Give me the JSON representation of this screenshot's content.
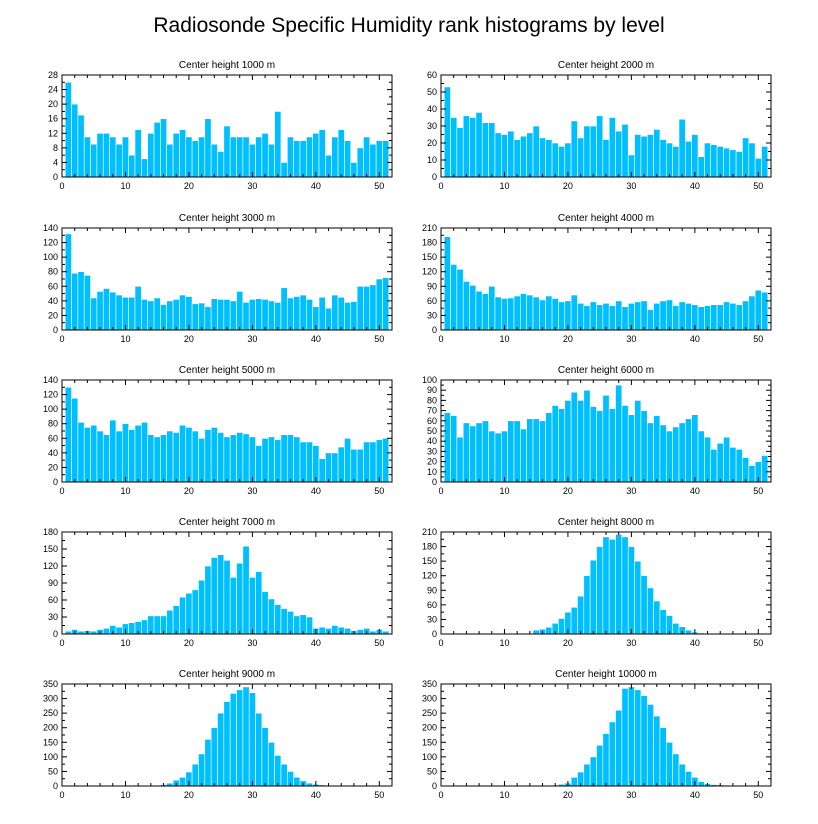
{
  "title": "Radiosonde Specific Humidity rank histograms by level",
  "colors": {
    "bar": "#00bfff",
    "axis": "#000000",
    "background": "#ffffff"
  },
  "chart_data": [
    {
      "type": "bar",
      "title": "Center height 1000 m",
      "x": [
        1,
        2,
        3,
        4,
        5,
        6,
        7,
        8,
        9,
        10,
        11,
        12,
        13,
        14,
        15,
        16,
        17,
        18,
        19,
        20,
        21,
        22,
        23,
        24,
        25,
        26,
        27,
        28,
        29,
        30,
        31,
        32,
        33,
        34,
        35,
        36,
        37,
        38,
        39,
        40,
        41,
        42,
        43,
        44,
        45,
        46,
        47,
        48,
        49,
        50,
        51
      ],
      "values": [
        26,
        20,
        17,
        11,
        9,
        12,
        12,
        11,
        9,
        11,
        6,
        13,
        5,
        12,
        15,
        16,
        9,
        12,
        13,
        11,
        10,
        11,
        16,
        9,
        7,
        14,
        11,
        11,
        11,
        9,
        11,
        12,
        9,
        18,
        4,
        11,
        10,
        10,
        11,
        12,
        13,
        6,
        11,
        13,
        10,
        4,
        8,
        11,
        9,
        10,
        10
      ],
      "xlim": [
        0,
        52
      ],
      "xticks": [
        0,
        10,
        20,
        30,
        40,
        50
      ],
      "ylim": [
        0,
        28
      ],
      "yticks": [
        0,
        4,
        8,
        12,
        16,
        20,
        24,
        28
      ]
    },
    {
      "type": "bar",
      "title": "Center height 2000 m",
      "x": [
        1,
        2,
        3,
        4,
        5,
        6,
        7,
        8,
        9,
        10,
        11,
        12,
        13,
        14,
        15,
        16,
        17,
        18,
        19,
        20,
        21,
        22,
        23,
        24,
        25,
        26,
        27,
        28,
        29,
        30,
        31,
        32,
        33,
        34,
        35,
        36,
        37,
        38,
        39,
        40,
        41,
        42,
        43,
        44,
        45,
        46,
        47,
        48,
        49,
        50,
        51
      ],
      "values": [
        53,
        35,
        29,
        36,
        35,
        38,
        32,
        32,
        26,
        25,
        27,
        22,
        24,
        26,
        30,
        23,
        22,
        20,
        18,
        20,
        33,
        23,
        30,
        30,
        36,
        22,
        35,
        27,
        31,
        13,
        25,
        24,
        25,
        28,
        22,
        20,
        18,
        34,
        21,
        25,
        12,
        20,
        19,
        18,
        17,
        16,
        15,
        23,
        20,
        11,
        18
      ],
      "xlim": [
        0,
        52
      ],
      "xticks": [
        0,
        10,
        20,
        30,
        40,
        50
      ],
      "ylim": [
        0,
        60
      ],
      "yticks": [
        0,
        10,
        20,
        30,
        40,
        50,
        60
      ]
    },
    {
      "type": "bar",
      "title": "Center height 3000 m",
      "x": [
        1,
        2,
        3,
        4,
        5,
        6,
        7,
        8,
        9,
        10,
        11,
        12,
        13,
        14,
        15,
        16,
        17,
        18,
        19,
        20,
        21,
        22,
        23,
        24,
        25,
        26,
        27,
        28,
        29,
        30,
        31,
        32,
        33,
        34,
        35,
        36,
        37,
        38,
        39,
        40,
        41,
        42,
        43,
        44,
        45,
        46,
        47,
        48,
        49,
        50,
        51
      ],
      "values": [
        132,
        78,
        80,
        75,
        44,
        53,
        57,
        52,
        48,
        45,
        45,
        60,
        42,
        40,
        44,
        35,
        40,
        42,
        48,
        46,
        36,
        37,
        32,
        43,
        42,
        42,
        40,
        53,
        38,
        42,
        43,
        42,
        40,
        38,
        58,
        44,
        46,
        48,
        42,
        32,
        45,
        30,
        48,
        45,
        38,
        39,
        60,
        60,
        62,
        70,
        72
      ],
      "xlim": [
        0,
        52
      ],
      "xticks": [
        0,
        10,
        20,
        30,
        40,
        50
      ],
      "ylim": [
        0,
        140
      ],
      "yticks": [
        0,
        20,
        40,
        60,
        80,
        100,
        120,
        140
      ]
    },
    {
      "type": "bar",
      "title": "Center height 4000 m",
      "x": [
        1,
        2,
        3,
        4,
        5,
        6,
        7,
        8,
        9,
        10,
        11,
        12,
        13,
        14,
        15,
        16,
        17,
        18,
        19,
        20,
        21,
        22,
        23,
        24,
        25,
        26,
        27,
        28,
        29,
        30,
        31,
        32,
        33,
        34,
        35,
        36,
        37,
        38,
        39,
        40,
        41,
        42,
        43,
        44,
        45,
        46,
        47,
        48,
        49,
        50,
        51
      ],
      "values": [
        192,
        135,
        125,
        100,
        92,
        80,
        75,
        90,
        68,
        65,
        66,
        70,
        75,
        72,
        68,
        62,
        70,
        65,
        58,
        60,
        72,
        55,
        50,
        58,
        52,
        55,
        50,
        60,
        48,
        55,
        58,
        60,
        42,
        55,
        60,
        62,
        50,
        58,
        55,
        52,
        48,
        50,
        52,
        52,
        58,
        55,
        52,
        60,
        70,
        82,
        78
      ],
      "xlim": [
        0,
        52
      ],
      "xticks": [
        0,
        10,
        20,
        30,
        40,
        50
      ],
      "ylim": [
        0,
        210
      ],
      "yticks": [
        0,
        30,
        60,
        90,
        120,
        150,
        180,
        210
      ]
    },
    {
      "type": "bar",
      "title": "Center height 5000 m",
      "x": [
        1,
        2,
        3,
        4,
        5,
        6,
        7,
        8,
        9,
        10,
        11,
        12,
        13,
        14,
        15,
        16,
        17,
        18,
        19,
        20,
        21,
        22,
        23,
        24,
        25,
        26,
        27,
        28,
        29,
        30,
        31,
        32,
        33,
        34,
        35,
        36,
        37,
        38,
        39,
        40,
        41,
        42,
        43,
        44,
        45,
        46,
        47,
        48,
        49,
        50,
        51
      ],
      "values": [
        130,
        115,
        82,
        75,
        78,
        70,
        65,
        85,
        70,
        80,
        72,
        78,
        82,
        65,
        62,
        65,
        70,
        68,
        78,
        75,
        70,
        60,
        72,
        75,
        68,
        62,
        65,
        68,
        66,
        62,
        50,
        60,
        62,
        58,
        65,
        65,
        62,
        55,
        55,
        50,
        32,
        40,
        40,
        48,
        60,
        45,
        45,
        55,
        55,
        58,
        60
      ],
      "xlim": [
        0,
        52
      ],
      "xticks": [
        0,
        10,
        20,
        30,
        40,
        50
      ],
      "ylim": [
        0,
        140
      ],
      "yticks": [
        0,
        20,
        40,
        60,
        80,
        100,
        120,
        140
      ]
    },
    {
      "type": "bar",
      "title": "Center height 6000 m",
      "x": [
        1,
        2,
        3,
        4,
        5,
        6,
        7,
        8,
        9,
        10,
        11,
        12,
        13,
        14,
        15,
        16,
        17,
        18,
        19,
        20,
        21,
        22,
        23,
        24,
        25,
        26,
        27,
        28,
        29,
        30,
        31,
        32,
        33,
        34,
        35,
        36,
        37,
        38,
        39,
        40,
        41,
        42,
        43,
        44,
        45,
        46,
        47,
        48,
        49,
        50,
        51
      ],
      "values": [
        68,
        65,
        44,
        58,
        55,
        58,
        60,
        50,
        48,
        50,
        60,
        60,
        52,
        62,
        62,
        60,
        68,
        75,
        72,
        80,
        88,
        80,
        90,
        74,
        70,
        85,
        72,
        95,
        75,
        66,
        80,
        70,
        58,
        65,
        56,
        50,
        54,
        58,
        62,
        66,
        50,
        44,
        32,
        38,
        44,
        34,
        32,
        24,
        16,
        20,
        26
      ],
      "xlim": [
        0,
        52
      ],
      "xticks": [
        0,
        10,
        20,
        30,
        40,
        50
      ],
      "ylim": [
        0,
        100
      ],
      "yticks": [
        0,
        10,
        20,
        30,
        40,
        50,
        60,
        70,
        80,
        90,
        100
      ]
    },
    {
      "type": "bar",
      "title": "Center height 7000 m",
      "x": [
        1,
        2,
        3,
        4,
        5,
        6,
        7,
        8,
        9,
        10,
        11,
        12,
        13,
        14,
        15,
        16,
        17,
        18,
        19,
        20,
        21,
        22,
        23,
        24,
        25,
        26,
        27,
        28,
        29,
        30,
        31,
        32,
        33,
        34,
        35,
        36,
        37,
        38,
        39,
        40,
        41,
        42,
        43,
        44,
        45,
        46,
        47,
        48,
        49,
        50,
        51
      ],
      "values": [
        5,
        8,
        5,
        6,
        5,
        8,
        10,
        15,
        12,
        18,
        20,
        22,
        25,
        32,
        32,
        32,
        42,
        50,
        65,
        72,
        78,
        95,
        120,
        135,
        140,
        130,
        100,
        125,
        155,
        100,
        110,
        75,
        62,
        52,
        45,
        40,
        32,
        34,
        30,
        10,
        12,
        10,
        15,
        12,
        10,
        6,
        8,
        10,
        5,
        8,
        5
      ],
      "xlim": [
        0,
        52
      ],
      "xticks": [
        0,
        10,
        20,
        30,
        40,
        50
      ],
      "ylim": [
        0,
        180
      ],
      "yticks": [
        0,
        30,
        60,
        90,
        120,
        150,
        180
      ]
    },
    {
      "type": "bar",
      "title": "Center height 8000 m",
      "x": [
        1,
        2,
        3,
        4,
        5,
        6,
        7,
        8,
        9,
        10,
        11,
        12,
        13,
        14,
        15,
        16,
        17,
        18,
        19,
        20,
        21,
        22,
        23,
        24,
        25,
        26,
        27,
        28,
        29,
        30,
        31,
        32,
        33,
        34,
        35,
        36,
        37,
        38,
        39,
        40,
        41,
        42,
        43,
        44,
        45,
        46,
        47,
        48,
        49,
        50,
        51
      ],
      "values": [
        0,
        0,
        0,
        0,
        0,
        0,
        0,
        0,
        0,
        0,
        0,
        0,
        0,
        0,
        8,
        10,
        14,
        22,
        32,
        45,
        55,
        78,
        120,
        152,
        180,
        200,
        195,
        205,
        200,
        180,
        150,
        120,
        95,
        68,
        50,
        38,
        22,
        15,
        8,
        4,
        2,
        1,
        0,
        0,
        0,
        0,
        0,
        0,
        0,
        0,
        0
      ],
      "xlim": [
        0,
        52
      ],
      "xticks": [
        0,
        10,
        20,
        30,
        40,
        50
      ],
      "ylim": [
        0,
        210
      ],
      "yticks": [
        0,
        30,
        60,
        90,
        120,
        150,
        180,
        210
      ]
    },
    {
      "type": "bar",
      "title": "Center height 9000 m",
      "x": [
        1,
        2,
        3,
        4,
        5,
        6,
        7,
        8,
        9,
        10,
        11,
        12,
        13,
        14,
        15,
        16,
        17,
        18,
        19,
        20,
        21,
        22,
        23,
        24,
        25,
        26,
        27,
        28,
        29,
        30,
        31,
        32,
        33,
        34,
        35,
        36,
        37,
        38,
        39,
        40,
        41,
        42,
        43,
        44,
        45,
        46,
        47,
        48,
        49,
        50,
        51
      ],
      "values": [
        0,
        0,
        0,
        0,
        0,
        0,
        0,
        0,
        0,
        0,
        0,
        0,
        0,
        1,
        3,
        5,
        10,
        20,
        30,
        48,
        75,
        110,
        160,
        200,
        250,
        290,
        318,
        330,
        340,
        320,
        250,
        200,
        150,
        105,
        75,
        50,
        30,
        18,
        10,
        6,
        4,
        3,
        2,
        1,
        0,
        0,
        0,
        0,
        0,
        0,
        0
      ],
      "xlim": [
        0,
        52
      ],
      "xticks": [
        0,
        10,
        20,
        30,
        40,
        50
      ],
      "ylim": [
        0,
        350
      ],
      "yticks": [
        0,
        50,
        100,
        150,
        200,
        250,
        300,
        350
      ]
    },
    {
      "type": "bar",
      "title": "Center height 10000 m",
      "x": [
        1,
        2,
        3,
        4,
        5,
        6,
        7,
        8,
        9,
        10,
        11,
        12,
        13,
        14,
        15,
        16,
        17,
        18,
        19,
        20,
        21,
        22,
        23,
        24,
        25,
        26,
        27,
        28,
        29,
        30,
        31,
        32,
        33,
        34,
        35,
        36,
        37,
        38,
        39,
        40,
        41,
        42,
        43,
        44,
        45,
        46,
        47,
        48,
        49,
        50,
        51
      ],
      "values": [
        0,
        0,
        0,
        0,
        0,
        0,
        0,
        0,
        0,
        0,
        0,
        0,
        0,
        0,
        0,
        0,
        1,
        3,
        6,
        10,
        30,
        48,
        75,
        100,
        140,
        180,
        220,
        260,
        335,
        340,
        330,
        310,
        280,
        240,
        200,
        150,
        110,
        75,
        50,
        30,
        15,
        8,
        5,
        4,
        3,
        2,
        2,
        1,
        1,
        0,
        0
      ],
      "xlim": [
        0,
        52
      ],
      "xticks": [
        0,
        10,
        20,
        30,
        40,
        50
      ],
      "ylim": [
        0,
        350
      ],
      "yticks": [
        0,
        50,
        100,
        150,
        200,
        250,
        300,
        350
      ]
    }
  ]
}
